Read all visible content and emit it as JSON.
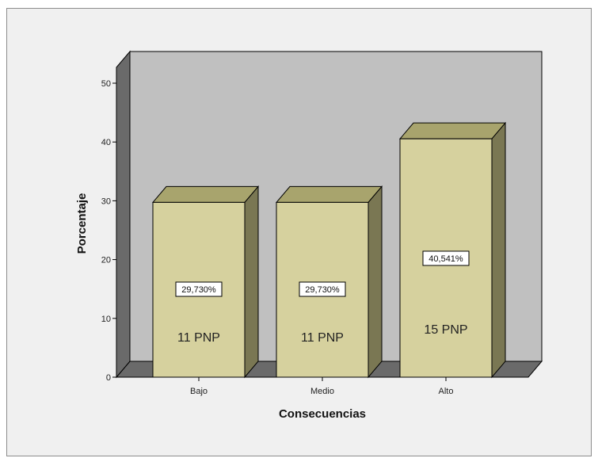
{
  "chart_data": {
    "type": "bar",
    "categories": [
      "Bajo",
      "Medio",
      "Alto"
    ],
    "values": [
      29.73,
      29.73,
      40.541
    ],
    "value_labels": [
      "29,730%",
      "29,730%",
      "40,541%"
    ],
    "count_labels": [
      "11 PNP",
      "11 PNP",
      "15 PNP"
    ],
    "xlabel": "Consecuencias",
    "ylabel": "Porcentaje",
    "ylim": [
      0,
      50
    ],
    "yticks": [
      "0",
      "10",
      "20",
      "30",
      "40",
      "50"
    ],
    "grid": false,
    "style": "3d",
    "colors": {
      "bar_front": "#d6d19e",
      "bar_top": "#a8a46d",
      "bar_side": "#7a7753",
      "back_wall": "#c0c0c0",
      "side_wall": "#6a6a6a",
      "floor": "#6a6a6a",
      "frame_bg": "#f0f0f0"
    }
  }
}
